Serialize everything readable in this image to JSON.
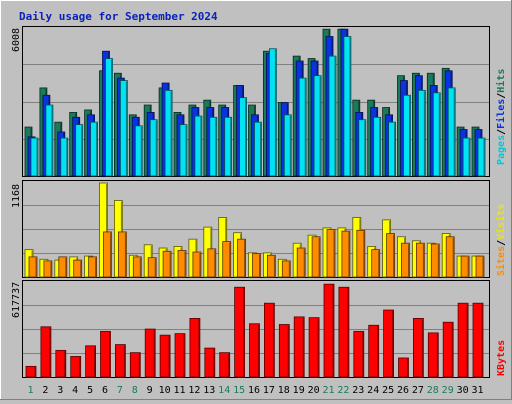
{
  "chart_data": [
    {
      "type": "bar",
      "title": "Daily usage for September 2024",
      "categories": [
        "1",
        "2",
        "3",
        "4",
        "5",
        "6",
        "7",
        "8",
        "9",
        "10",
        "11",
        "12",
        "13",
        "14",
        "15",
        "16",
        "17",
        "18",
        "19",
        "20",
        "21",
        "22",
        "23",
        "24",
        "25",
        "26",
        "27",
        "28",
        "29",
        "30",
        "31"
      ],
      "weekend_days": [
        "1",
        "7",
        "8",
        "14",
        "15",
        "21",
        "22",
        "28",
        "29"
      ],
      "ylabel_max": "6008",
      "ylim": [
        0,
        6008
      ],
      "legend": [
        "Pages",
        "/",
        "Files",
        "/",
        "Hits"
      ],
      "series": [
        {
          "name": "Hits",
          "color": "#1b7a5a",
          "values": [
            2000,
            3600,
            2200,
            2600,
            2700,
            4300,
            4200,
            2500,
            2900,
            3600,
            2600,
            2900,
            3100,
            2900,
            3700,
            2900,
            5100,
            3000,
            4900,
            4800,
            6000,
            6000,
            3100,
            3100,
            2800,
            4100,
            4200,
            4200,
            4400,
            2000,
            2000
          ]
        },
        {
          "name": "Files",
          "color": "#0a32e0",
          "values": [
            1600,
            3300,
            1800,
            2400,
            2500,
            5100,
            4000,
            2400,
            2600,
            3800,
            2500,
            2800,
            2800,
            2800,
            3700,
            2500,
            5000,
            3000,
            4700,
            4700,
            5700,
            6000,
            2600,
            2800,
            2500,
            3900,
            4100,
            3700,
            4300,
            1900,
            1900
          ]
        },
        {
          "name": "Pages",
          "color": "#00e3f3",
          "values": [
            1550,
            2900,
            1550,
            2100,
            2200,
            4800,
            3900,
            2050,
            2300,
            3500,
            2100,
            2450,
            2400,
            2400,
            3200,
            2200,
            5200,
            2500,
            4000,
            4100,
            4900,
            5700,
            2300,
            2400,
            2200,
            3300,
            3500,
            3400,
            3600,
            1550,
            1550
          ]
        }
      ]
    },
    {
      "type": "bar",
      "categories": [
        "1",
        "2",
        "3",
        "4",
        "5",
        "6",
        "7",
        "8",
        "9",
        "10",
        "11",
        "12",
        "13",
        "14",
        "15",
        "16",
        "17",
        "18",
        "19",
        "20",
        "21",
        "22",
        "23",
        "24",
        "25",
        "26",
        "27",
        "28",
        "29",
        "30",
        "31"
      ],
      "ylabel_max": "1168",
      "ylim": [
        0,
        1168
      ],
      "legend": [
        "Sites",
        "/",
        "Visits"
      ],
      "series": [
        {
          "name": "Visits",
          "color": "#ffff00",
          "values": [
            340,
            220,
            210,
            250,
            260,
            1168,
            950,
            270,
            400,
            360,
            380,
            470,
            620,
            740,
            550,
            300,
            300,
            220,
            420,
            520,
            610,
            610,
            740,
            380,
            710,
            500,
            450,
            420,
            540,
            260,
            260
          ]
        },
        {
          "name": "Sites",
          "color": "#ff8c00",
          "values": [
            250,
            200,
            250,
            210,
            250,
            560,
            560,
            250,
            240,
            320,
            330,
            310,
            350,
            440,
            470,
            290,
            270,
            200,
            360,
            500,
            590,
            570,
            580,
            340,
            540,
            420,
            420,
            410,
            500,
            260,
            260
          ]
        }
      ]
    },
    {
      "type": "bar",
      "categories": [
        "1",
        "2",
        "3",
        "4",
        "5",
        "6",
        "7",
        "8",
        "9",
        "10",
        "11",
        "12",
        "13",
        "14",
        "15",
        "16",
        "17",
        "18",
        "19",
        "20",
        "21",
        "22",
        "23",
        "24",
        "25",
        "26",
        "27",
        "28",
        "29",
        "30",
        "31"
      ],
      "ylabel_max": "617737",
      "ylim": [
        0,
        617737
      ],
      "legend": [
        "KBytes"
      ],
      "series": [
        {
          "name": "KBytes",
          "color": "#ff0000",
          "values": [
            70000,
            330000,
            175000,
            135000,
            205000,
            300000,
            213000,
            160000,
            315000,
            275000,
            285000,
            385000,
            190000,
            160000,
            590000,
            350000,
            485000,
            345000,
            395000,
            390000,
            610000,
            590000,
            300000,
            340000,
            440000,
            125000,
            385000,
            290000,
            360000,
            485000,
            485000
          ]
        }
      ]
    }
  ]
}
